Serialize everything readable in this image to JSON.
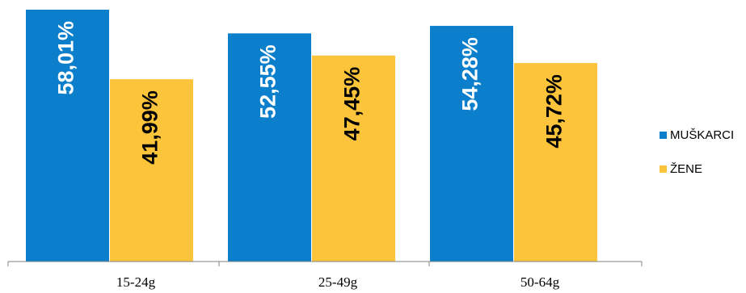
{
  "chart_data": {
    "type": "bar",
    "categories": [
      "15-24g",
      "25-49g",
      "50-64g"
    ],
    "series": [
      {
        "name": "MUŠKARCI",
        "color": "#0b7fcc",
        "label_color": "#ffffff",
        "values": [
          58.01,
          52.55,
          54.28
        ],
        "labels": [
          "58,01%",
          "52,55%",
          "54,28%"
        ]
      },
      {
        "name": "ŽENE",
        "color": "#fcc43a",
        "label_color": "#000000",
        "values": [
          41.99,
          47.45,
          45.72
        ],
        "labels": [
          "41,99%",
          "47,45%",
          "45,72%"
        ]
      }
    ],
    "ylim": [
      0,
      60
    ],
    "grid": false,
    "legend_position": "right",
    "title": "",
    "xlabel": "",
    "ylabel": ""
  }
}
